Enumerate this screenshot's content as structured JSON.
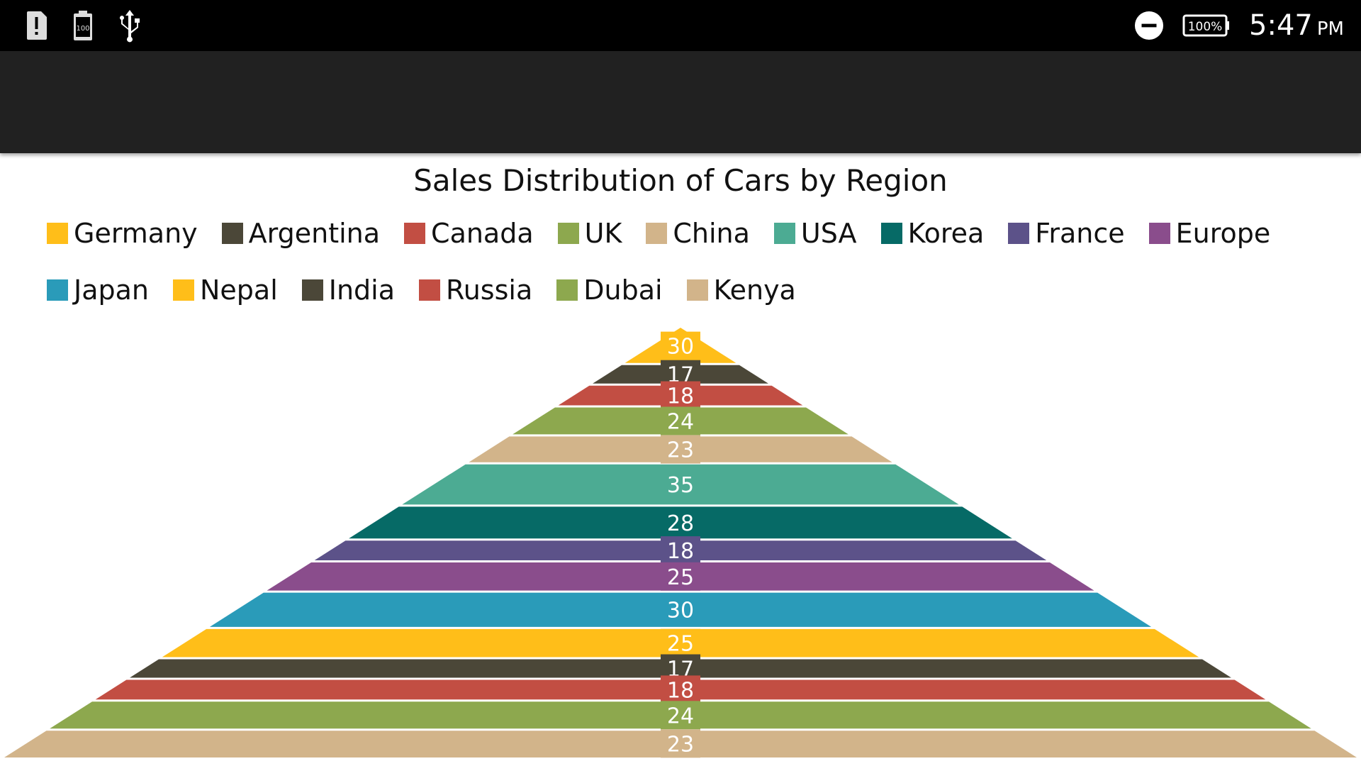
{
  "status_bar": {
    "time": "5:47",
    "ampm": "PM",
    "battery": "100%",
    "battery_small": "100",
    "icons": [
      "alert-icon",
      "battery-100-icon",
      "usb-icon",
      "do-not-disturb-icon",
      "battery-icon"
    ]
  },
  "chart_data": {
    "type": "pyramid",
    "title": "Sales Distribution of Cars by Region",
    "legend_position": "top",
    "categories": [
      "Germany",
      "Argentina",
      "Canada",
      "UK",
      "China",
      "USA",
      "Korea",
      "France",
      "Europe",
      "Japan",
      "Nepal",
      "India",
      "Russia",
      "Dubai",
      "Kenya"
    ],
    "values": [
      30,
      17,
      18,
      24,
      23,
      35,
      28,
      18,
      25,
      30,
      25,
      17,
      18,
      24,
      23
    ],
    "colors": [
      "#FFBE19",
      "#4B4738",
      "#C24E43",
      "#8DA84E",
      "#D2B48A",
      "#4CAB93",
      "#066A66",
      "#5C5289",
      "#8A4D8C",
      "#2A9BB9",
      "#FFBE19",
      "#4B4738",
      "#C24E43",
      "#8DA84E",
      "#D2B48A"
    ]
  }
}
